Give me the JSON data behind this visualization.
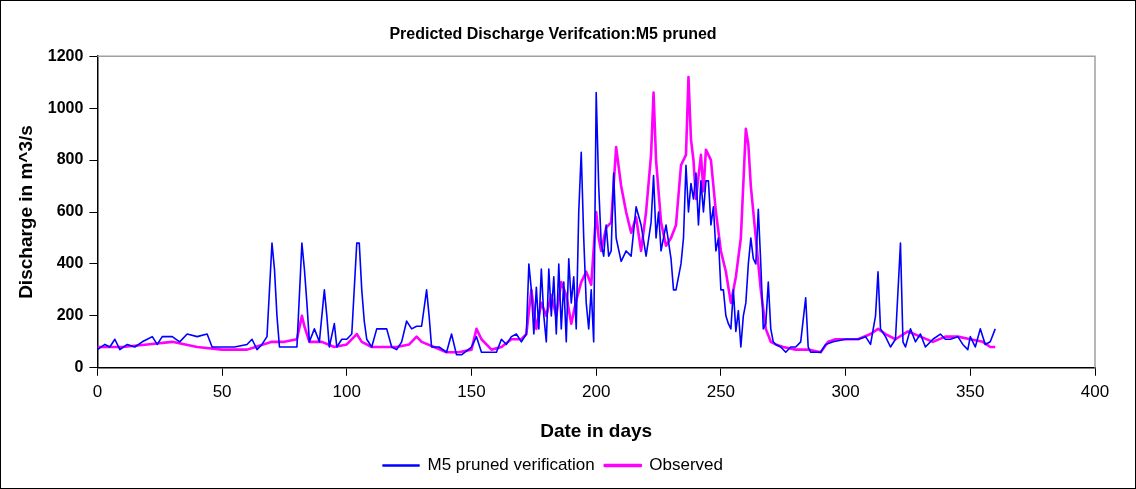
{
  "chart_data": {
    "type": "line",
    "title": "Predicted Discharge Verifcation:M5 pruned",
    "xlabel": "Date in days",
    "ylabel": "Discharge in m^3/s",
    "xlim": [
      0,
      400
    ],
    "xticks": [
      0,
      50,
      100,
      150,
      200,
      250,
      300,
      350,
      400
    ],
    "ylim": [
      0,
      1200
    ],
    "yticks": [
      0,
      200,
      400,
      600,
      800,
      1000,
      1200
    ],
    "grid": false,
    "legend": "bottom",
    "marker": "none",
    "line_style": "solid",
    "series": [
      {
        "name": "M5 pruned verification",
        "color": "#0000ff",
        "x": [
          0,
          3,
          5,
          7,
          9,
          12,
          15,
          18,
          20,
          22,
          24,
          26,
          30,
          33,
          36,
          40,
          44,
          46,
          50,
          55,
          60,
          62,
          64,
          66,
          68,
          70,
          71,
          72,
          73,
          75,
          80,
          82,
          83,
          84,
          85,
          87,
          89,
          91,
          92,
          93,
          95,
          96,
          98,
          100,
          102,
          104,
          105,
          106,
          107,
          108,
          110,
          112,
          116,
          118,
          120,
          122,
          124,
          126,
          128,
          130,
          132,
          133,
          134,
          137,
          140,
          142,
          144,
          146,
          150,
          152,
          154,
          156,
          160,
          162,
          164,
          166,
          168,
          170,
          172,
          173,
          174,
          175,
          176,
          177,
          178,
          179,
          180,
          181,
          182,
          183,
          184,
          185,
          186,
          187,
          188,
          189,
          190,
          191,
          192,
          193,
          194,
          195,
          196,
          197,
          198,
          199,
          200,
          201,
          202,
          203,
          204,
          205,
          206,
          207,
          208,
          210,
          212,
          214,
          216,
          218,
          220,
          222,
          223,
          224,
          225,
          226,
          228,
          230,
          231,
          232,
          234,
          235,
          236,
          237,
          238,
          239,
          240,
          241,
          242,
          243,
          244,
          245,
          246,
          247,
          248,
          249,
          250,
          251,
          252,
          253,
          254,
          255,
          256,
          257,
          258,
          259,
          260,
          261,
          262,
          263,
          264,
          265,
          266,
          267,
          268,
          269,
          270,
          271,
          272,
          274,
          276,
          278,
          280,
          282,
          284,
          285,
          286,
          290,
          292,
          295,
          300,
          305,
          308,
          310,
          312,
          313,
          314,
          316,
          318,
          320,
          322,
          323,
          324,
          326,
          328,
          330,
          332,
          335,
          338,
          340,
          342,
          345,
          347,
          349,
          350,
          352,
          354,
          356,
          358,
          360
        ],
        "values": [
          70,
          90,
          80,
          110,
          70,
          90,
          80,
          100,
          110,
          120,
          90,
          120,
          120,
          100,
          130,
          120,
          130,
          80,
          80,
          80,
          90,
          110,
          70,
          90,
          120,
          480,
          380,
          200,
          80,
          80,
          80,
          480,
          380,
          250,
          100,
          150,
          100,
          300,
          200,
          80,
          170,
          80,
          110,
          110,
          130,
          480,
          480,
          300,
          180,
          110,
          80,
          150,
          150,
          80,
          70,
          100,
          180,
          150,
          160,
          160,
          300,
          200,
          80,
          80,
          60,
          130,
          50,
          50,
          80,
          120,
          60,
          60,
          60,
          110,
          90,
          120,
          130,
          100,
          130,
          400,
          300,
          130,
          310,
          150,
          380,
          200,
          100,
          380,
          200,
          350,
          130,
          400,
          150,
          330,
          100,
          420,
          250,
          350,
          150,
          600,
          830,
          500,
          250,
          150,
          300,
          100,
          1060,
          700,
          480,
          430,
          550,
          430,
          450,
          750,
          500,
          410,
          450,
          430,
          620,
          550,
          430,
          560,
          740,
          500,
          600,
          450,
          550,
          420,
          300,
          300,
          400,
          500,
          780,
          600,
          710,
          650,
          750,
          550,
          720,
          600,
          720,
          720,
          550,
          620,
          450,
          500,
          300,
          300,
          200,
          170,
          150,
          300,
          140,
          220,
          80,
          200,
          250,
          400,
          500,
          420,
          400,
          610,
          400,
          150,
          170,
          330,
          150,
          100,
          90,
          80,
          60,
          80,
          80,
          100,
          270,
          80,
          60,
          60,
          90,
          100,
          110,
          110,
          120,
          90,
          200,
          370,
          150,
          120,
          80,
          110,
          480,
          100,
          80,
          150,
          100,
          130,
          80,
          110,
          130,
          110,
          110,
          120,
          90,
          70,
          120,
          80,
          150,
          90,
          100,
          150
        ]
      },
      {
        "name": "Observed",
        "color": "#ff00ff",
        "x": [
          0,
          10,
          20,
          30,
          40,
          50,
          60,
          70,
          75,
          80,
          82,
          83,
          85,
          90,
          95,
          100,
          104,
          106,
          110,
          120,
          125,
          128,
          130,
          135,
          140,
          145,
          150,
          152,
          154,
          158,
          162,
          166,
          170,
          172,
          174,
          176,
          178,
          180,
          182,
          184,
          186,
          188,
          190,
          192,
          194,
          196,
          198,
          200,
          201,
          202,
          204,
          206,
          208,
          210,
          212,
          214,
          216,
          218,
          220,
          222,
          223,
          224,
          226,
          228,
          230,
          232,
          234,
          236,
          237,
          238,
          239,
          240,
          242,
          243,
          244,
          246,
          248,
          250,
          252,
          254,
          256,
          258,
          260,
          261,
          262,
          264,
          266,
          268,
          270,
          272,
          275,
          280,
          285,
          290,
          293,
          296,
          300,
          305,
          310,
          313,
          316,
          320,
          325,
          330,
          335,
          340,
          345,
          350,
          355,
          358,
          360
        ],
        "values": [
          80,
          80,
          90,
          100,
          80,
          70,
          70,
          100,
          100,
          110,
          200,
          160,
          100,
          100,
          80,
          90,
          130,
          100,
          80,
          80,
          90,
          120,
          100,
          80,
          60,
          60,
          70,
          150,
          110,
          70,
          80,
          110,
          110,
          130,
          300,
          150,
          250,
          200,
          280,
          200,
          330,
          280,
          170,
          260,
          330,
          370,
          320,
          600,
          500,
          450,
          540,
          560,
          850,
          700,
          600,
          520,
          580,
          450,
          600,
          820,
          1060,
          800,
          560,
          470,
          500,
          550,
          780,
          820,
          1120,
          880,
          800,
          650,
          820,
          680,
          840,
          800,
          600,
          450,
          370,
          250,
          350,
          500,
          920,
          860,
          700,
          500,
          300,
          150,
          100,
          90,
          80,
          70,
          70,
          60,
          100,
          110,
          110,
          110,
          130,
          150,
          130,
          110,
          140,
          120,
          100,
          120,
          120,
          110,
          100,
          80,
          80
        ]
      }
    ]
  }
}
